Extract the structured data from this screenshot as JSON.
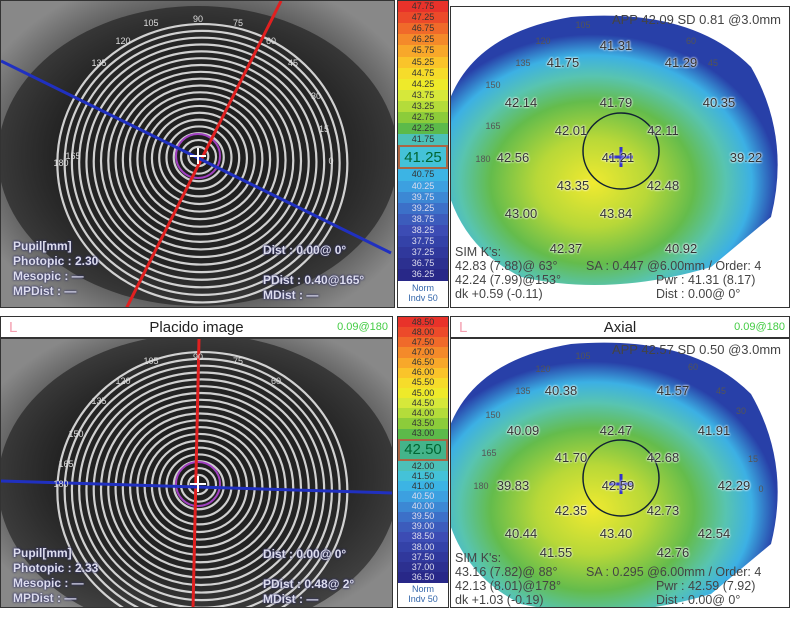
{
  "top": {
    "eye": {
      "pupil_label": "Pupil[mm]",
      "photopic": "Photopic : 2.30",
      "mesopic": "Mesopic : —",
      "mpdist": "MPDist : —",
      "dist": "Dist : 0.00@  0°",
      "pdist": "PDist : 0.40@165°",
      "mdist": "MDist : —",
      "degrees": [
        "105",
        "90",
        "75",
        "120",
        "60",
        "135",
        "45",
        "30",
        "165",
        "15",
        "180",
        "0"
      ]
    },
    "scale": {
      "values": [
        "47.75",
        "47.25",
        "46.75",
        "46.25",
        "45.75",
        "45.25",
        "44.75",
        "44.25",
        "43.75",
        "43.25",
        "42.75",
        "42.25",
        "41.75",
        "41.25",
        "40.75",
        "40.25",
        "39.75",
        "39.25",
        "38.75",
        "38.25",
        "37.75",
        "37.25",
        "36.75",
        "36.25"
      ],
      "highlight": "41.25",
      "norm": "Norm",
      "indv": "Indv 50"
    },
    "map": {
      "app": "APP 42.09  SD 0.81  @3.0mm",
      "values": [
        "41.31",
        "41.75",
        "41.29",
        "42.14",
        "41.79",
        "40.35",
        "42.01",
        "42.11",
        "42.56",
        "41.21",
        "39.22",
        "43.35",
        "42.48",
        "43.00",
        "43.84",
        "42.37",
        "40.92"
      ],
      "degrees": [
        "105",
        "120",
        "60",
        "135",
        "45",
        "150",
        "165",
        "180"
      ],
      "simk": "SIM K's:",
      "k1": "42.83 (7.88)@ 63°",
      "k2": "42.24 (7.99)@153°",
      "dk": "dk +0.59 (-0.11)",
      "sa": "SA : 0.447 @6.00mm / Order: 4",
      "pwr": "Pwr :  41.31 (8.17)",
      "dist": "Dist :  0.00@  0°"
    }
  },
  "bottom": {
    "eye_header": {
      "eye": "L",
      "title": "Placido image",
      "value": "0.09@180"
    },
    "map_header": {
      "eye": "L",
      "title": "Axial",
      "value": "0.09@180"
    },
    "eye": {
      "pupil_label": "Pupil[mm]",
      "photopic": "Photopic : 2.33",
      "mesopic": "Mesopic : —",
      "mpdist": "MPDist : —",
      "dist": "Dist : 0.00@  0°",
      "pdist": "PDist : 0.48@  2°",
      "mdist": "MDist : —",
      "degrees": [
        "105",
        "90",
        "75",
        "120",
        "135",
        "60",
        "150",
        "165",
        "180"
      ]
    },
    "scale": {
      "values": [
        "48.50",
        "48.00",
        "47.50",
        "47.00",
        "46.50",
        "46.00",
        "45.50",
        "45.00",
        "44.50",
        "44.00",
        "43.50",
        "43.00",
        "42.50",
        "42.00",
        "41.50",
        "41.00",
        "40.50",
        "40.00",
        "39.50",
        "39.00",
        "38.50",
        "38.00",
        "37.50",
        "37.00",
        "36.50"
      ],
      "highlight": "42.50",
      "norm": "Norm",
      "indv": "Indv 50"
    },
    "map": {
      "app": "APP 42.57  SD 0.50  @3.0mm",
      "values": [
        "40.38",
        "41.57",
        "40.09",
        "42.47",
        "41.91",
        "41.70",
        "42.68",
        "39.83",
        "42.59",
        "42.29",
        "42.35",
        "42.73",
        "40.44",
        "43.40",
        "42.54",
        "41.55",
        "42.76"
      ],
      "degrees": [
        "105",
        "120",
        "60",
        "135",
        "45",
        "150",
        "30",
        "165",
        "15",
        "180",
        "0"
      ],
      "simk": "SIM K's:",
      "k1": "43.16 (7.82)@ 88°",
      "k2": "42.13 (8.01)@178°",
      "dk": "dk +1.03 (-0.19)",
      "sa": "SA : 0.295 @6.00mm / Order: 4",
      "pwr": "Pwr :  42.59 (7.92)",
      "dist": "Dist :  0.00@  0°"
    }
  },
  "colors": {
    "scale": [
      "#e8322a",
      "#ec4a2a",
      "#f06a2a",
      "#f48a2a",
      "#f8a82a",
      "#fac42a",
      "#f6dc2a",
      "#eeea2a",
      "#d6e83a",
      "#b4dc3a",
      "#8ccc3a",
      "#5cba4a",
      "#44b48a",
      "#4cc0b8",
      "#44c2d8",
      "#3cb4e4",
      "#3ca0e0",
      "#3c88d4",
      "#3c70c8",
      "#3c5cbc",
      "#3c4cb4",
      "#3442a8",
      "#30389c",
      "#2c3090",
      "#282888"
    ],
    "axis_red": "#e02020",
    "axis_blue": "#2030c0"
  }
}
